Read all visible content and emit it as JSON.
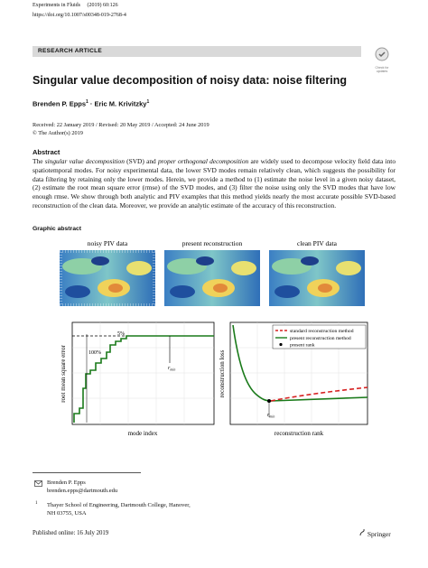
{
  "header": {
    "journal": "Experiments in Fluids",
    "issue": "(2019) 60:126",
    "doi": "https://doi.org/10.1007/s00348-019-2768-4"
  },
  "section_label": "RESEARCH ARTICLE",
  "check_updates": [
    "Check for",
    "updates"
  ],
  "title": "Singular value decomposition of noisy data: noise filtering",
  "authors": [
    {
      "name": "Brenden P. Epps",
      "affil": "1"
    },
    {
      "name": "Eric M. Krivitzky",
      "affil": "1"
    }
  ],
  "author_separator": "·",
  "dates": "Received: 22 January 2019 / Revised: 20 May 2019 / Accepted: 24 June 2019",
  "copyright": "© The Author(s) 2019",
  "abstract": {
    "heading": "Abstract",
    "segments": [
      {
        "text": "The ",
        "italic": false
      },
      {
        "text": "singular value decomposition",
        "italic": true
      },
      {
        "text": " (SVD) and ",
        "italic": false
      },
      {
        "text": "proper orthogonal decomposition",
        "italic": true
      },
      {
        "text": " are widely used to decompose velocity field data into spatiotemporal modes. For noisy experimental data, the lower SVD modes remain relatively clean, which suggests the possibility for data filtering by retaining only the lower modes. Herein, we provide a method to (1) estimate the noise level in a given noisy dataset, (2) estimate the root mean square error (rmse) of the SVD modes, and (3) filter the noise using only the SVD modes that have low enough rmse. We show through both analytic and PIV examples that this method yields nearly the most accurate possible SVD-based reconstruction of the clean data. Moreover, we provide an analytic estimate of the accuracy of this reconstruction.",
        "italic": false
      }
    ]
  },
  "graphic_abstract": {
    "heading": "Graphic abstract",
    "panels": [
      "noisy PIV data",
      "present reconstruction",
      "clean PIV data"
    ],
    "left_plot": {
      "ylabel": "root mean square error",
      "xlabel": "mode index",
      "annot_100": "100%",
      "annot_5": "5%",
      "rmin": {
        "base": "r",
        "sub": "min"
      }
    },
    "right_plot": {
      "ylabel": "reconstruction loss",
      "xlabel": "reconstruction rank",
      "legend": [
        "standard reconstruction method",
        "present reconstruction method",
        "present rank"
      ],
      "rmin": {
        "base": "r",
        "sub": "min"
      }
    }
  },
  "correspondence": {
    "name": "Brenden P. Epps",
    "email": "brenden.epps@dartmouth.edu"
  },
  "affiliation": {
    "marker": "1",
    "lines": [
      "Thayer School of Engineering, Dartmouth College, Hanover,",
      "NH 03755, USA"
    ]
  },
  "published": "Published online: 16 July 2019",
  "publisher": "Springer"
}
